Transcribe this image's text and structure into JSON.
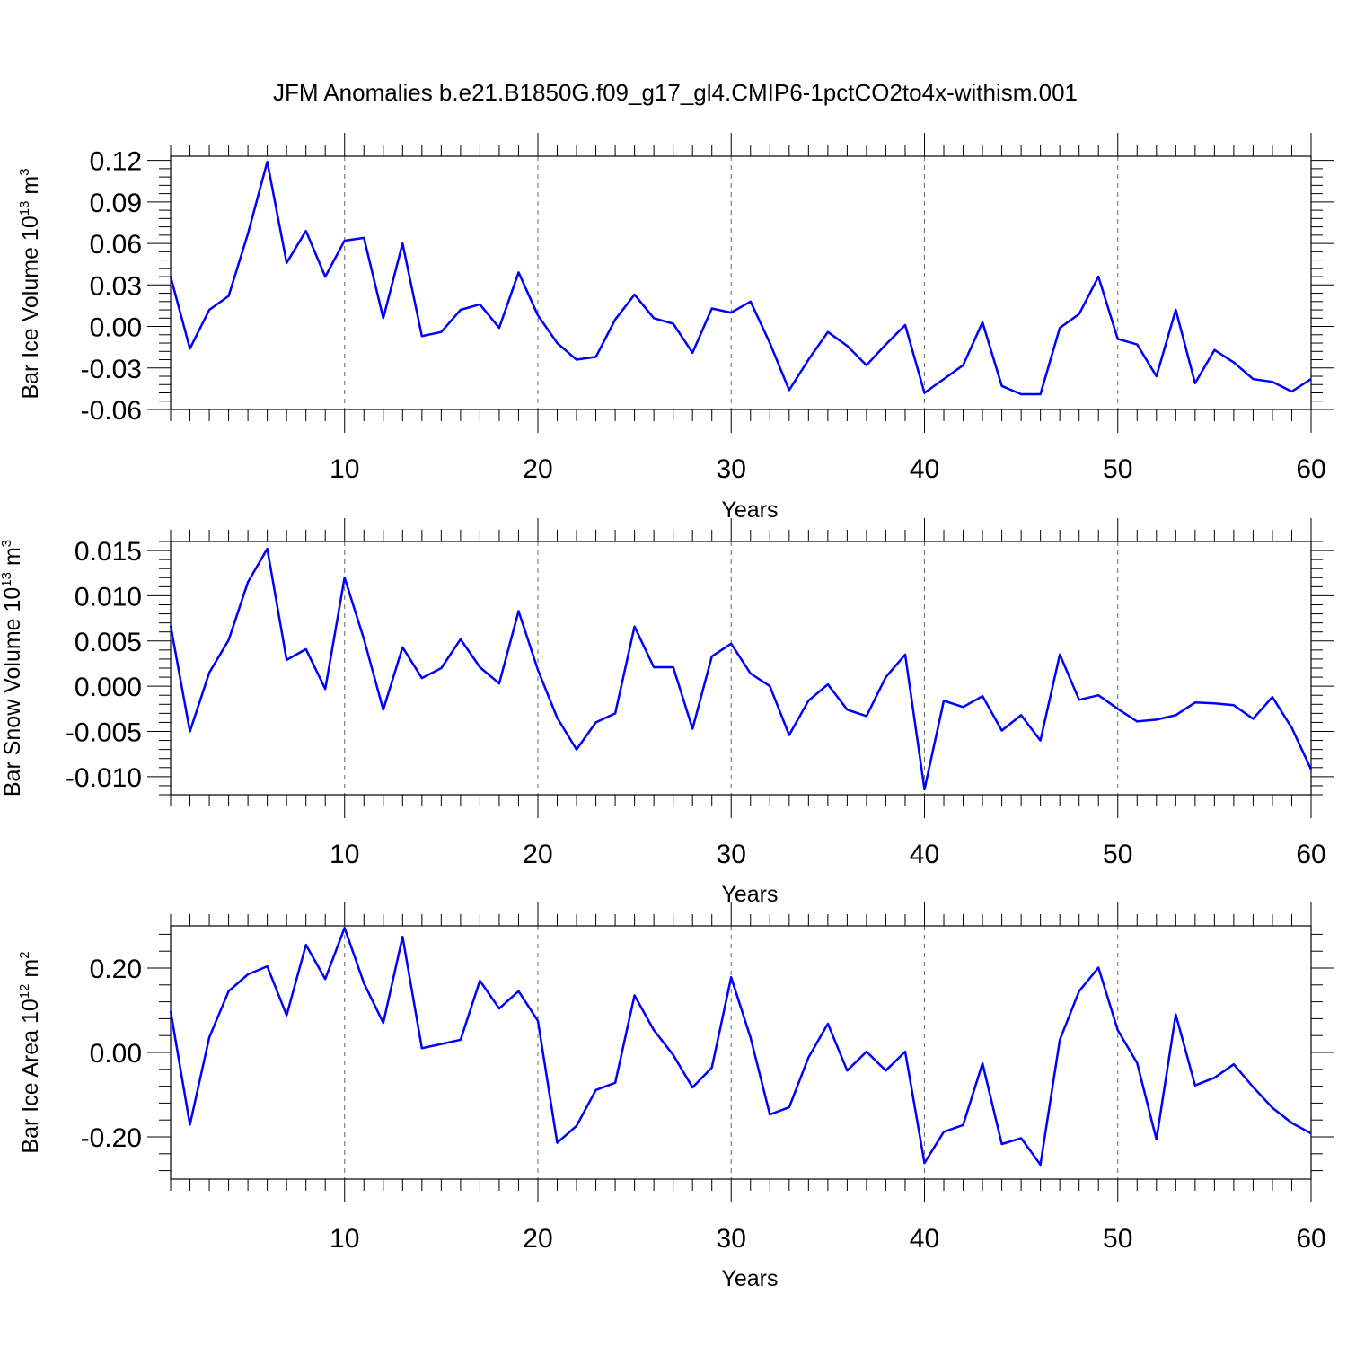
{
  "title": "JFM Anomalies b.e21.B1850G.f09_g17_gl4.CMIP6-1pctCO2to4x-withism.001",
  "colors": {
    "line": "#0000ff",
    "axis": "#000000",
    "grid": "#666666"
  },
  "chart_data": [
    {
      "type": "line",
      "xlabel": "Years",
      "ylabel": {
        "prefix": "Bar Ice Volume 10",
        "exp": "13",
        "unit": " m",
        "unit_exp": "3"
      },
      "xlim": [
        1,
        60
      ],
      "ylim": [
        -0.06,
        0.123
      ],
      "xticks": [
        10,
        20,
        30,
        40,
        50,
        60
      ],
      "xtick_labels": [
        "10",
        "20",
        "30",
        "40",
        "50",
        "60"
      ],
      "yticks": [
        -0.06,
        -0.03,
        0.0,
        0.03,
        0.06,
        0.09,
        0.12
      ],
      "ytick_labels": [
        "-0.06",
        "-0.03",
        "0.00",
        "0.03",
        "0.06",
        "0.09",
        "0.12"
      ],
      "grid": "vertical dashed at major x ticks",
      "series": [
        {
          "x": [
            1,
            2,
            3,
            4,
            5,
            6,
            7,
            8,
            9,
            10,
            11,
            12,
            13,
            14,
            15,
            16,
            17,
            18,
            19,
            20,
            21,
            22,
            23,
            24,
            25,
            26,
            27,
            28,
            29,
            30,
            31,
            32,
            33,
            34,
            35,
            36,
            37,
            38,
            39,
            40,
            41,
            42,
            43,
            44,
            45,
            46,
            47,
            48,
            49,
            50,
            51,
            52,
            53,
            54,
            55,
            56,
            57,
            58,
            59,
            60
          ],
          "y": [
            0.036,
            -0.016,
            0.012,
            0.022,
            0.067,
            0.119,
            0.046,
            0.069,
            0.036,
            0.062,
            0.064,
            0.006,
            0.06,
            -0.007,
            -0.004,
            0.012,
            0.016,
            -0.001,
            0.039,
            0.008,
            -0.012,
            -0.024,
            -0.022,
            0.005,
            0.023,
            0.006,
            0.002,
            -0.019,
            0.013,
            0.01,
            0.018,
            -0.012,
            -0.046,
            -0.024,
            -0.004,
            -0.014,
            -0.028,
            -0.013,
            0.001,
            -0.048,
            -0.038,
            -0.028,
            0.003,
            -0.043,
            -0.049,
            -0.049,
            -0.001,
            0.009,
            0.036,
            -0.009,
            -0.013,
            -0.036,
            0.012,
            -0.041,
            -0.017,
            -0.026,
            -0.038,
            -0.04,
            -0.047,
            -0.038
          ]
        }
      ]
    },
    {
      "type": "line",
      "xlabel": "Years",
      "ylabel": {
        "prefix": "Bar Snow Volume 10",
        "exp": "13",
        "unit": " m",
        "unit_exp": "3"
      },
      "xlim": [
        1,
        60
      ],
      "ylim": [
        -0.012,
        0.016
      ],
      "xticks": [
        10,
        20,
        30,
        40,
        50,
        60
      ],
      "xtick_labels": [
        "10",
        "20",
        "30",
        "40",
        "50",
        "60"
      ],
      "yticks": [
        -0.01,
        -0.005,
        0.0,
        0.005,
        0.01,
        0.015
      ],
      "ytick_labels": [
        "-0.010",
        "-0.005",
        "0.000",
        "0.005",
        "0.010",
        "0.015"
      ],
      "grid": "vertical dashed at major x ticks",
      "series": [
        {
          "x": [
            1,
            2,
            3,
            4,
            5,
            6,
            7,
            8,
            9,
            10,
            11,
            12,
            13,
            14,
            15,
            16,
            17,
            18,
            19,
            20,
            21,
            22,
            23,
            24,
            25,
            26,
            27,
            28,
            29,
            30,
            31,
            32,
            33,
            34,
            35,
            36,
            37,
            38,
            39,
            40,
            41,
            42,
            43,
            44,
            45,
            46,
            47,
            48,
            49,
            50,
            51,
            52,
            53,
            54,
            55,
            56,
            57,
            58,
            59,
            60
          ],
          "y": [
            0.0067,
            -0.005,
            0.0015,
            0.0051,
            0.0115,
            0.0152,
            0.0029,
            0.0041,
            -0.0003,
            0.012,
            0.0052,
            -0.0026,
            0.0043,
            0.0009,
            0.002,
            0.0052,
            0.0021,
            0.0003,
            0.0083,
            0.0018,
            -0.0035,
            -0.007,
            -0.004,
            -0.003,
            0.0066,
            0.0021,
            0.0021,
            -0.0047,
            0.0033,
            0.0047,
            0.0014,
            0.0,
            -0.0054,
            -0.0016,
            0.0002,
            -0.0026,
            -0.0033,
            0.001,
            0.0035,
            -0.0114,
            -0.0016,
            -0.0023,
            -0.0011,
            -0.0049,
            -0.0032,
            -0.006,
            0.0035,
            -0.0015,
            -0.001,
            -0.0025,
            -0.0039,
            -0.0037,
            -0.0032,
            -0.0018,
            -0.0019,
            -0.0021,
            -0.0036,
            -0.0012,
            -0.0046,
            -0.0092
          ]
        }
      ]
    },
    {
      "type": "line",
      "xlabel": "Years",
      "ylabel": {
        "prefix": "Bar Ice Area 10",
        "exp": "12",
        "unit": " m",
        "unit_exp": "2"
      },
      "xlim": [
        1,
        60
      ],
      "ylim": [
        -0.3,
        0.3
      ],
      "xticks": [
        10,
        20,
        30,
        40,
        50,
        60
      ],
      "xtick_labels": [
        "10",
        "20",
        "30",
        "40",
        "50",
        "60"
      ],
      "yticks": [
        -0.2,
        0.0,
        0.2
      ],
      "ytick_labels": [
        "-0.20",
        "0.00",
        "0.20"
      ],
      "grid": "vertical dashed at major x ticks",
      "series": [
        {
          "x": [
            1,
            2,
            3,
            4,
            5,
            6,
            7,
            8,
            9,
            10,
            11,
            12,
            13,
            14,
            15,
            16,
            17,
            18,
            19,
            20,
            21,
            22,
            23,
            24,
            25,
            26,
            27,
            28,
            29,
            30,
            31,
            32,
            33,
            34,
            35,
            36,
            37,
            38,
            39,
            40,
            41,
            42,
            43,
            44,
            45,
            46,
            47,
            48,
            49,
            50,
            51,
            52,
            53,
            54,
            55,
            56,
            57,
            58,
            59,
            60
          ],
          "y": [
            0.098,
            -0.171,
            0.036,
            0.145,
            0.185,
            0.204,
            0.088,
            0.255,
            0.174,
            0.295,
            0.164,
            0.07,
            0.274,
            0.01,
            0.02,
            0.03,
            0.17,
            0.104,
            0.145,
            0.075,
            -0.214,
            -0.174,
            -0.089,
            -0.072,
            0.135,
            0.053,
            -0.006,
            -0.083,
            -0.036,
            0.178,
            0.035,
            -0.147,
            -0.13,
            -0.012,
            0.068,
            -0.043,
            0.002,
            -0.043,
            0.002,
            -0.262,
            -0.188,
            -0.172,
            -0.026,
            -0.217,
            -0.203,
            -0.266,
            0.03,
            0.145,
            0.201,
            0.053,
            -0.025,
            -0.206,
            0.09,
            -0.078,
            -0.06,
            -0.028,
            -0.082,
            -0.131,
            -0.167,
            -0.192
          ]
        }
      ]
    }
  ]
}
